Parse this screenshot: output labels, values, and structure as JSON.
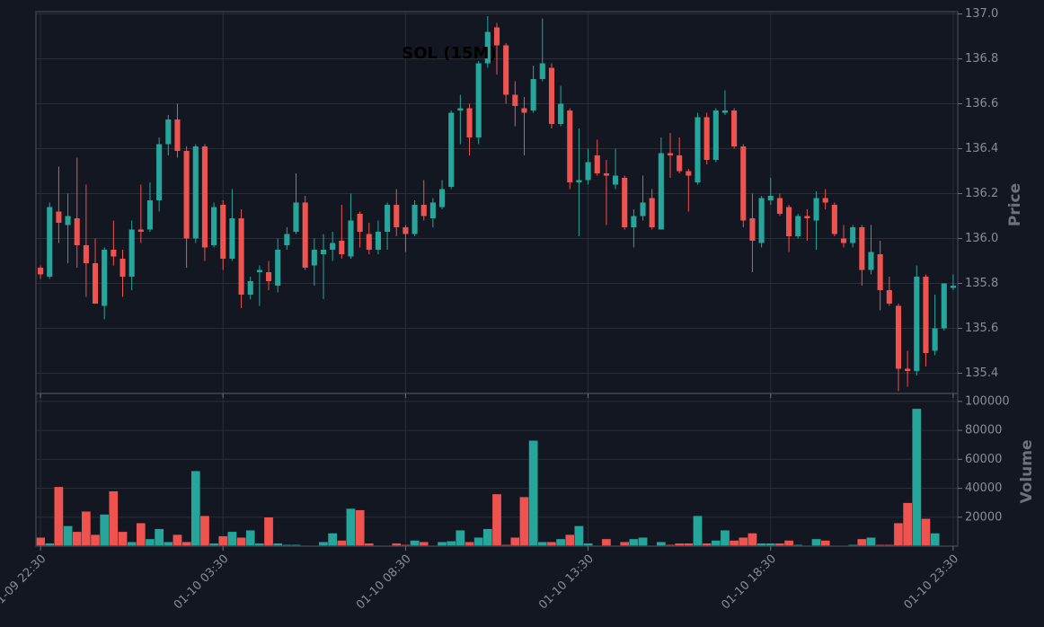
{
  "chart_data": [
    {
      "type": "candlestick",
      "title": "SOL (15M)",
      "ylabel": "Price",
      "up_color": "#26a69a",
      "down_color": "#ef5350",
      "grid": true,
      "categories": [
        "01-09 22:30",
        null,
        null,
        null,
        null,
        null,
        null,
        null,
        null,
        null,
        null,
        null,
        null,
        null,
        null,
        null,
        null,
        null,
        null,
        null,
        "01-10 03:30",
        null,
        null,
        null,
        null,
        null,
        null,
        null,
        null,
        null,
        null,
        null,
        null,
        null,
        null,
        null,
        null,
        null,
        null,
        null,
        "01-10 08:30",
        null,
        null,
        null,
        null,
        null,
        null,
        null,
        null,
        null,
        null,
        null,
        null,
        null,
        null,
        null,
        null,
        null,
        null,
        null,
        "01-10 13:30",
        null,
        null,
        null,
        null,
        null,
        null,
        null,
        null,
        null,
        null,
        null,
        null,
        null,
        null,
        null,
        null,
        null,
        null,
        null,
        "01-10 18:30",
        null,
        null,
        null,
        null,
        null,
        null,
        null,
        null,
        null,
        null,
        null,
        null,
        null,
        null,
        null,
        null,
        null,
        null,
        null,
        "01-10 23:30"
      ],
      "open": [
        135.87,
        135.83,
        136.12,
        136.06,
        136.09,
        135.97,
        135.89,
        135.7,
        135.95,
        135.91,
        135.83,
        136.04,
        136.04,
        136.17,
        136.42,
        136.53,
        136.39,
        136.0,
        136.41,
        135.97,
        136.15,
        135.91,
        136.09,
        135.75,
        135.85,
        135.85,
        135.79,
        135.97,
        136.03,
        136.16,
        135.88,
        135.93,
        135.95,
        135.99,
        135.92,
        136.11,
        136.02,
        135.95,
        136.03,
        136.15,
        136.05,
        136.02,
        136.15,
        136.09,
        136.14,
        136.23,
        136.57,
        136.58,
        136.45,
        136.78,
        136.94,
        136.86,
        136.64,
        136.58,
        136.57,
        136.71,
        136.76,
        136.51,
        136.57,
        136.25,
        136.26,
        136.37,
        136.29,
        136.24,
        136.27,
        136.05,
        136.1,
        136.18,
        136.04,
        136.38,
        136.37,
        136.3,
        136.25,
        136.54,
        136.35,
        136.56,
        136.57,
        136.41,
        136.09,
        135.98,
        136.17,
        136.18,
        136.14,
        136.01,
        136.1,
        136.08,
        136.18,
        136.15,
        136.0,
        135.98,
        136.05,
        135.86,
        135.93,
        135.77,
        135.7,
        135.42,
        135.41,
        135.83,
        135.5,
        135.6,
        135.78
      ],
      "high": [
        135.88,
        136.16,
        136.32,
        136.2,
        136.36,
        136.24,
        136.0,
        135.96,
        136.08,
        135.95,
        136.08,
        136.24,
        136.25,
        136.45,
        136.55,
        136.6,
        136.41,
        136.42,
        136.42,
        136.16,
        136.17,
        136.22,
        136.13,
        135.83,
        135.88,
        135.9,
        136.0,
        136.05,
        136.29,
        136.19,
        136.0,
        136.02,
        136.03,
        136.15,
        136.2,
        136.12,
        136.07,
        136.08,
        136.16,
        136.22,
        136.06,
        136.17,
        136.26,
        136.18,
        136.26,
        136.57,
        136.64,
        136.6,
        136.79,
        136.99,
        136.96,
        136.87,
        136.7,
        136.63,
        136.77,
        136.98,
        136.78,
        136.68,
        136.58,
        136.49,
        136.4,
        136.44,
        136.35,
        136.4,
        136.28,
        136.13,
        136.28,
        136.22,
        136.45,
        136.47,
        136.45,
        136.31,
        136.56,
        136.56,
        136.58,
        136.66,
        136.58,
        136.42,
        136.2,
        136.19,
        136.27,
        136.2,
        136.15,
        136.11,
        136.13,
        136.21,
        136.22,
        136.16,
        136.06,
        136.06,
        136.06,
        136.06,
        135.99,
        135.83,
        135.71,
        135.5,
        135.88,
        135.84,
        135.75,
        135.8,
        135.84
      ],
      "low": [
        135.82,
        135.82,
        135.98,
        135.89,
        135.87,
        135.74,
        135.71,
        135.64,
        135.88,
        135.74,
        135.77,
        135.98,
        136.03,
        136.12,
        136.37,
        136.36,
        135.87,
        135.98,
        135.9,
        135.96,
        135.86,
        135.9,
        135.69,
        135.73,
        135.7,
        135.77,
        135.76,
        135.95,
        136.02,
        135.86,
        135.79,
        135.73,
        135.9,
        135.91,
        135.91,
        135.96,
        135.93,
        135.93,
        135.95,
        136.01,
        135.94,
        136.01,
        136.08,
        136.05,
        136.13,
        136.22,
        136.42,
        136.37,
        136.42,
        136.76,
        136.73,
        136.6,
        136.5,
        136.37,
        136.56,
        136.7,
        136.49,
        136.5,
        136.22,
        136.01,
        136.24,
        136.28,
        136.06,
        136.22,
        136.04,
        135.96,
        136.08,
        136.04,
        136.04,
        136.27,
        136.29,
        136.12,
        136.24,
        136.33,
        136.34,
        136.55,
        136.4,
        136.05,
        135.85,
        135.96,
        136.15,
        136.1,
        135.94,
        136.0,
        135.99,
        135.95,
        136.13,
        136.01,
        135.96,
        135.96,
        135.79,
        135.84,
        135.68,
        135.7,
        135.32,
        135.34,
        135.39,
        135.43,
        135.48,
        135.59,
        135.77
      ],
      "close": [
        135.84,
        136.14,
        136.07,
        136.1,
        135.97,
        135.89,
        135.71,
        135.95,
        135.92,
        135.83,
        136.04,
        136.03,
        136.17,
        136.42,
        136.53,
        136.39,
        136.0,
        136.41,
        135.96,
        136.14,
        135.91,
        136.09,
        135.75,
        135.81,
        135.86,
        135.81,
        135.95,
        136.02,
        136.16,
        135.87,
        135.95,
        135.95,
        135.98,
        135.93,
        136.08,
        136.03,
        135.95,
        136.03,
        136.15,
        136.05,
        136.02,
        136.15,
        136.1,
        136.16,
        136.22,
        136.56,
        136.58,
        136.45,
        136.78,
        136.92,
        136.86,
        136.64,
        136.59,
        136.56,
        136.71,
        136.78,
        136.51,
        136.6,
        136.25,
        136.26,
        136.34,
        136.29,
        136.28,
        136.28,
        136.05,
        136.1,
        136.16,
        136.05,
        136.38,
        136.37,
        136.3,
        136.28,
        136.54,
        136.35,
        136.57,
        136.57,
        136.41,
        136.08,
        135.99,
        136.18,
        136.19,
        136.11,
        136.01,
        136.1,
        136.09,
        136.18,
        136.16,
        136.02,
        135.98,
        136.05,
        135.86,
        135.94,
        135.77,
        135.71,
        135.42,
        135.41,
        135.83,
        135.49,
        135.6,
        135.8,
        135.79
      ],
      "ylim": [
        135.31,
        137.01
      ],
      "yticks": [
        135.4,
        135.6,
        135.8,
        {
          "value": 136.0,
          "label": "136.0"
        },
        136.2,
        136.4,
        136.6,
        136.8,
        {
          "value": 137.0,
          "label": "137.0"
        }
      ]
    },
    {
      "type": "bar",
      "ylabel": "Volume",
      "grid": true,
      "values": [
        6000,
        2000,
        41000,
        14000,
        10000,
        24000,
        8000,
        22000,
        38000,
        10000,
        3000,
        16000,
        5000,
        12000,
        3000,
        8000,
        3000,
        52000,
        21000,
        2000,
        7000,
        10000,
        6000,
        11000,
        2000,
        20000,
        2000,
        1000,
        1000,
        500,
        500,
        3000,
        9000,
        4000,
        26000,
        25000,
        2000,
        500,
        500,
        2000,
        1000,
        4000,
        3000,
        500,
        3000,
        3500,
        11000,
        3000,
        6000,
        12000,
        36000,
        1000,
        6000,
        34000,
        73000,
        3000,
        3000,
        5000,
        8000,
        14000,
        2000,
        500,
        5000,
        500,
        3000,
        5000,
        6000,
        500,
        3000,
        1000,
        2000,
        2000,
        21000,
        2000,
        4000,
        11000,
        4000,
        6000,
        9000,
        2000,
        2000,
        2000,
        4000,
        1000,
        500,
        5000,
        4000,
        500,
        500,
        1000,
        5000,
        6000,
        1000,
        1000,
        16000,
        30000,
        95000,
        19000,
        9000,
        500,
        500
      ],
      "ylim": [
        0,
        105500
      ],
      "yticks": [
        20000,
        40000,
        60000,
        80000,
        100000
      ]
    }
  ]
}
